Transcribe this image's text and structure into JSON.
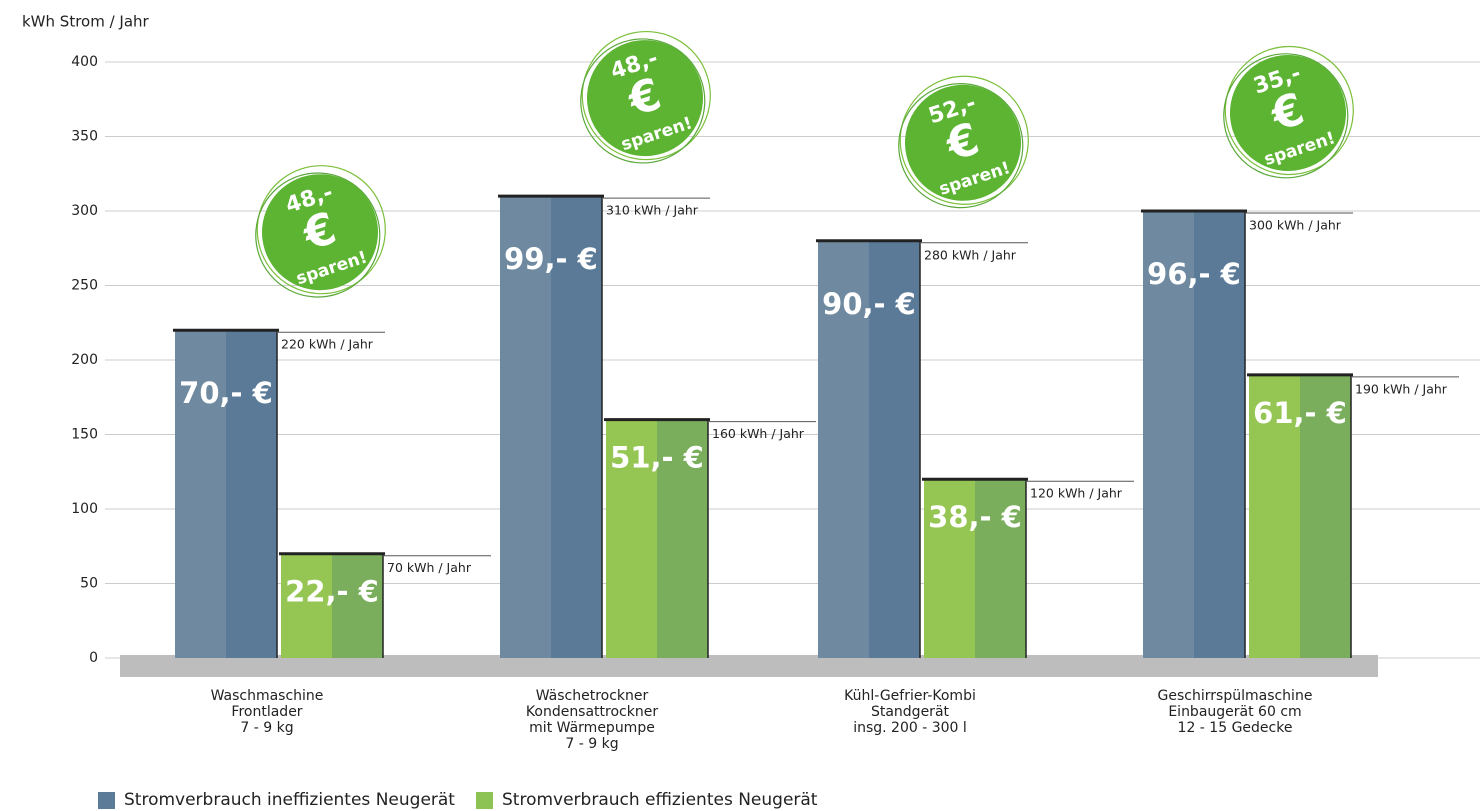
{
  "chart_data": {
    "type": "bar",
    "y_axis_label": "kWh Strom / Jahr",
    "categories": [
      "Waschmaschine\nFrontlader\n7 - 9 kg",
      "Wäschetrockner\nKondensattrockner\nmit Wärmepumpe\n7 - 9 kg",
      "Kühl-Gefrier-Kombi\nStandgerät\ninsg. 200 - 300 l",
      "Geschirrspülmaschine\nEinbaugerät 60 cm\n12 - 15 Gedecke"
    ],
    "series": [
      {
        "name": "Stromverbrauch ineffizientes Neugerät",
        "color": "#5b7b99",
        "values": [
          220,
          310,
          280,
          300
        ],
        "value_labels": [
          "220 kWh / Jahr",
          "310 kWh / Jahr",
          "280 kWh / Jahr",
          "300 kWh / Jahr"
        ],
        "cost_labels": [
          "70,- €",
          "99,- €",
          "90,- €",
          "96,- €"
        ]
      },
      {
        "name": "Stromverbrauch effizientes Neugerät",
        "color": "#8dc255",
        "values": [
          70,
          160,
          120,
          190
        ],
        "value_labels": [
          "70 kWh / Jahr",
          "160 kWh / Jahr",
          "120 kWh / Jahr",
          "190 kWh / Jahr"
        ],
        "cost_labels": [
          "22,- €",
          "51,- €",
          "38,- €",
          "61,- €"
        ]
      }
    ],
    "savings": [
      "48,-",
      "48,-",
      "52,-",
      "35,-"
    ],
    "savings_currency": "€",
    "savings_text": "sparen!",
    "ylim": [
      0,
      400
    ],
    "yticks": [
      0,
      50,
      100,
      150,
      200,
      250,
      300,
      350,
      400
    ],
    "grid": true
  }
}
